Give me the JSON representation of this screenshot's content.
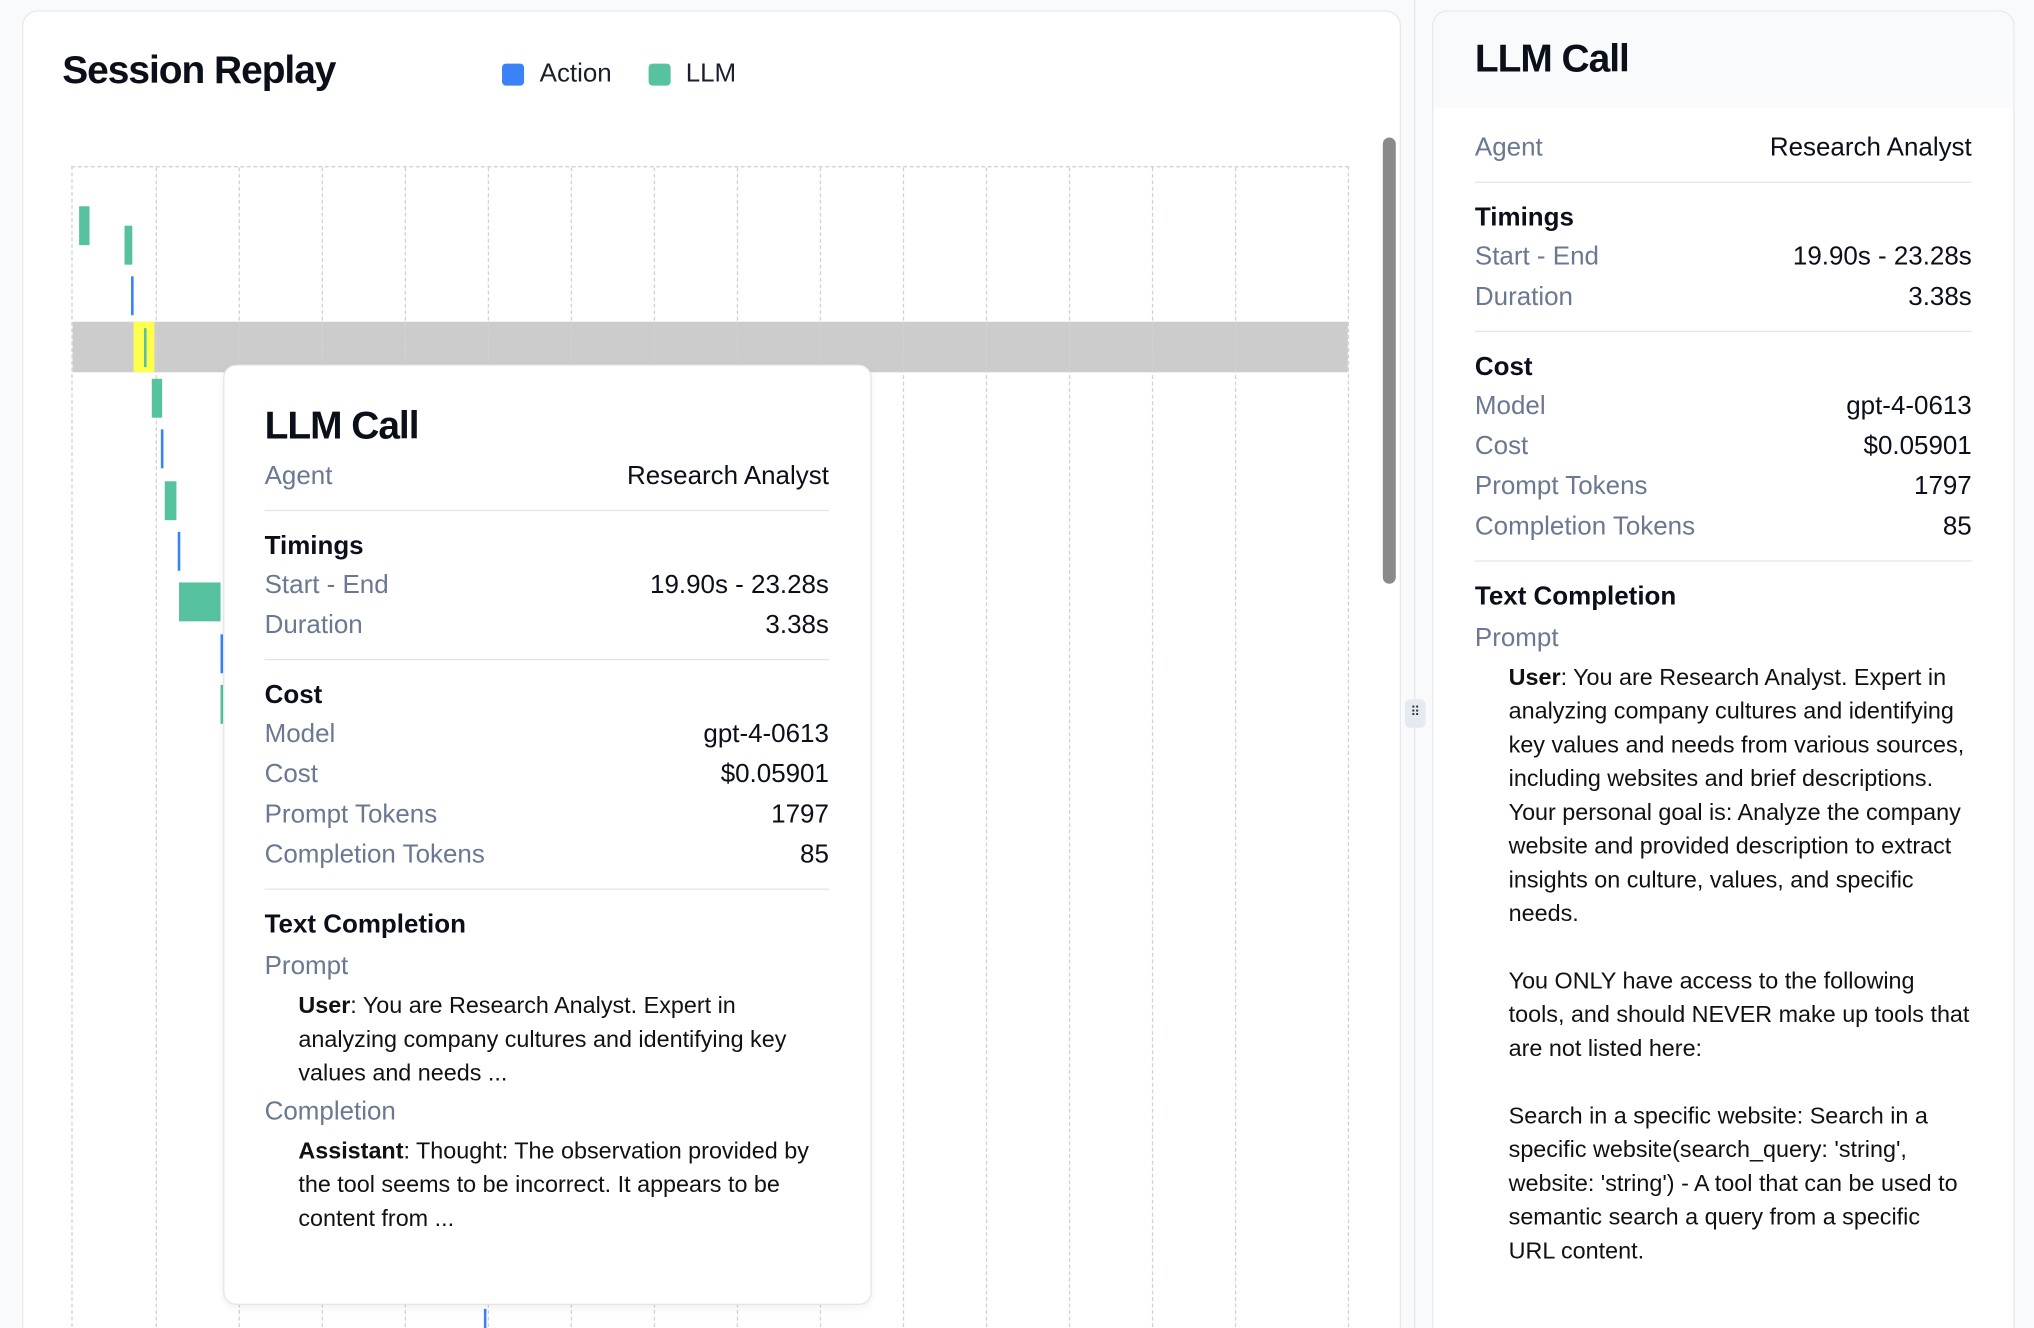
{
  "main": {
    "title": "Session Replay",
    "legend": [
      {
        "label": "Action",
        "color": "#3b82f6"
      },
      {
        "label": "LLM",
        "color": "#57c29f"
      }
    ],
    "highlight_color": "#ffff4d"
  },
  "tooltip": {
    "title": "LLM Call",
    "agent_label": "Agent",
    "agent": "Research Analyst",
    "timings_label": "Timings",
    "start_end_label": "Start - End",
    "start_end": "19.90s - 23.28s",
    "duration_label": "Duration",
    "duration": "3.38s",
    "cost_section": "Cost",
    "model_label": "Model",
    "model": "gpt-4-0613",
    "cost_label": "Cost",
    "cost": "$0.05901",
    "prompt_tokens_label": "Prompt Tokens",
    "prompt_tokens": "1797",
    "completion_tokens_label": "Completion Tokens",
    "completion_tokens": "85",
    "text_completion_label": "Text Completion",
    "prompt_label": "Prompt",
    "user_role": "User",
    "user_text": ": You are Research Analyst. Expert in analyzing company cultures and identifying key values and needs ...",
    "completion_label": "Completion",
    "assistant_role": "Assistant",
    "assistant_text": ": Thought: The observation provided by the tool seems to be incorrect. It appears to be content from ..."
  },
  "panel": {
    "title": "LLM Call",
    "agent_label": "Agent",
    "agent": "Research Analyst",
    "timings_label": "Timings",
    "start_end_label": "Start - End",
    "start_end": "19.90s - 23.28s",
    "duration_label": "Duration",
    "duration": "3.38s",
    "cost_section": "Cost",
    "model_label": "Model",
    "model": "gpt-4-0613",
    "cost_label": "Cost",
    "cost": "$0.05901",
    "prompt_tokens_label": "Prompt Tokens",
    "prompt_tokens": "1797",
    "completion_tokens_label": "Completion Tokens",
    "completion_tokens": "85",
    "text_completion_label": "Text Completion",
    "prompt_label": "Prompt",
    "user_role": "User",
    "prompt_lines": [
      ": You are Research Analyst. Expert in analyzing company cultures and identifying key values and needs from various sources, including websites and brief descriptions.",
      "Your personal goal is: Analyze the company website and provided description to extract insights on culture, values, and specific needs.",
      "You ONLY have access to the following tools, and should NEVER make up tools that are not listed here:",
      "Search in a specific website: Search in a specific website(search_query: 'string', website: 'string') - A tool that can be used to semantic search a query from a specific URL content."
    ]
  }
}
